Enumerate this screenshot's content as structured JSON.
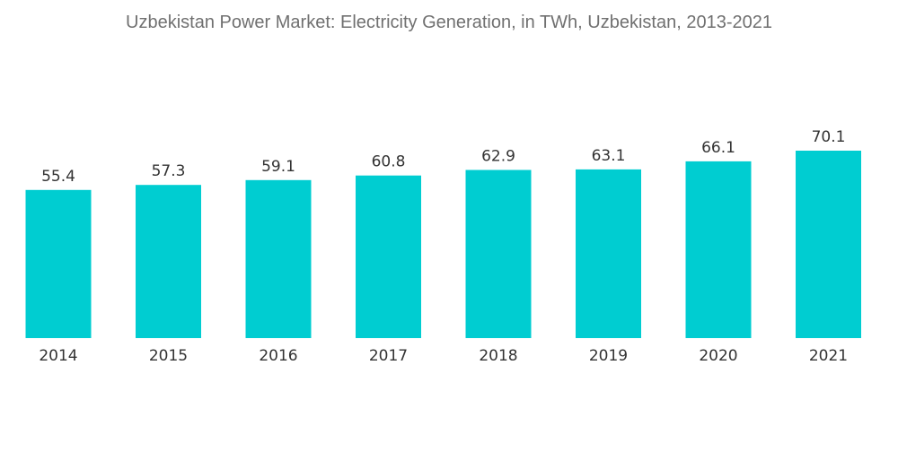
{
  "chart_data": {
    "type": "bar",
    "title": "Uzbekistan Power Market: Electricity Generation, in TWh, Uzbekistan, 2013-2021",
    "categories": [
      "2014",
      "2015",
      "2016",
      "2017",
      "2018",
      "2019",
      "2020",
      "2021"
    ],
    "values": [
      55.4,
      57.3,
      59.1,
      60.8,
      62.9,
      63.1,
      66.1,
      70.1
    ],
    "value_labels": [
      "55.4",
      "57.3",
      "59.1",
      "60.8",
      "62.9",
      "63.1",
      "66.1",
      "70.1"
    ],
    "xlabel": "",
    "ylabel": "",
    "ylim": [
      0,
      70.1
    ],
    "grid": false,
    "legend": "none",
    "bar_color": "#00cdd1"
  }
}
